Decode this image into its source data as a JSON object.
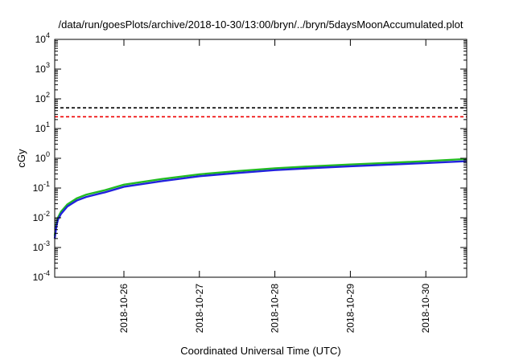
{
  "chart_data": {
    "type": "line",
    "title": "/data/run/goesPlots/archive/2018-10-30/13:00/bryn/../bryn/5daysMoonAccumulated.plot",
    "xlabel": "Coordinated Universal Time (UTC)",
    "ylabel": "cGy",
    "x_axis": {
      "type": "date",
      "range": [
        "2018-10-25T02:00",
        "2018-10-30T13:00"
      ],
      "ticks": [
        "2018-10-26",
        "2018-10-27",
        "2018-10-28",
        "2018-10-29",
        "2018-10-30"
      ]
    },
    "y_axis": {
      "scale": "log",
      "range": [
        0.0001,
        10000
      ],
      "ticks": [
        {
          "base": "10",
          "exp": "-4",
          "value": 0.0001
        },
        {
          "base": "10",
          "exp": "-3",
          "value": 0.001
        },
        {
          "base": "10",
          "exp": "-2",
          "value": 0.01
        },
        {
          "base": "10",
          "exp": "-1",
          "value": 0.1
        },
        {
          "base": "10",
          "exp": "0",
          "value": 1
        },
        {
          "base": "10",
          "exp": "1",
          "value": 10
        },
        {
          "base": "10",
          "exp": "2",
          "value": 100
        },
        {
          "base": "10",
          "exp": "3",
          "value": 1000
        },
        {
          "base": "10",
          "exp": "4",
          "value": 10000
        }
      ]
    },
    "grid": false,
    "series": [
      {
        "color": "#22bb22",
        "style": "solid",
        "points": [
          [
            "2018-10-25T02:00",
            0.0025
          ],
          [
            "2018-10-25T02:30",
            0.006
          ],
          [
            "2018-10-25T03:00",
            0.01
          ],
          [
            "2018-10-25T04:00",
            0.016
          ],
          [
            "2018-10-25T06:00",
            0.028
          ],
          [
            "2018-10-25T09:00",
            0.045
          ],
          [
            "2018-10-25T12:00",
            0.06
          ],
          [
            "2018-10-25T18:00",
            0.085
          ],
          [
            "2018-10-26T00:00",
            0.13
          ],
          [
            "2018-10-26T12:00",
            0.2
          ],
          [
            "2018-10-27T00:00",
            0.29
          ],
          [
            "2018-10-27T12:00",
            0.37
          ],
          [
            "2018-10-28T00:00",
            0.46
          ],
          [
            "2018-10-28T12:00",
            0.54
          ],
          [
            "2018-10-29T00:00",
            0.62
          ],
          [
            "2018-10-29T12:00",
            0.7
          ],
          [
            "2018-10-30T00:00",
            0.8
          ],
          [
            "2018-10-30T13:00",
            0.95
          ]
        ]
      },
      {
        "color": "#2222dd",
        "style": "solid",
        "points": [
          [
            "2018-10-25T02:00",
            0.002
          ],
          [
            "2018-10-25T02:30",
            0.005
          ],
          [
            "2018-10-25T03:00",
            0.0085
          ],
          [
            "2018-10-25T04:00",
            0.0135
          ],
          [
            "2018-10-25T06:00",
            0.024
          ],
          [
            "2018-10-25T09:00",
            0.038
          ],
          [
            "2018-10-25T12:00",
            0.05
          ],
          [
            "2018-10-25T18:00",
            0.072
          ],
          [
            "2018-10-26T00:00",
            0.11
          ],
          [
            "2018-10-26T12:00",
            0.17
          ],
          [
            "2018-10-27T00:00",
            0.25
          ],
          [
            "2018-10-27T12:00",
            0.32
          ],
          [
            "2018-10-28T00:00",
            0.4
          ],
          [
            "2018-10-28T12:00",
            0.47
          ],
          [
            "2018-10-29T00:00",
            0.54
          ],
          [
            "2018-10-29T12:00",
            0.61
          ],
          [
            "2018-10-30T00:00",
            0.69
          ],
          [
            "2018-10-30T13:00",
            0.8
          ]
        ]
      },
      {
        "color": "#000000",
        "style": "dashed",
        "points": [
          [
            "2018-10-25T02:00",
            50
          ],
          [
            "2018-10-30T13:00",
            50
          ]
        ]
      },
      {
        "color": "#ee0000",
        "style": "dashed",
        "points": [
          [
            "2018-10-25T02:00",
            25
          ],
          [
            "2018-10-30T13:00",
            25
          ]
        ]
      }
    ]
  }
}
